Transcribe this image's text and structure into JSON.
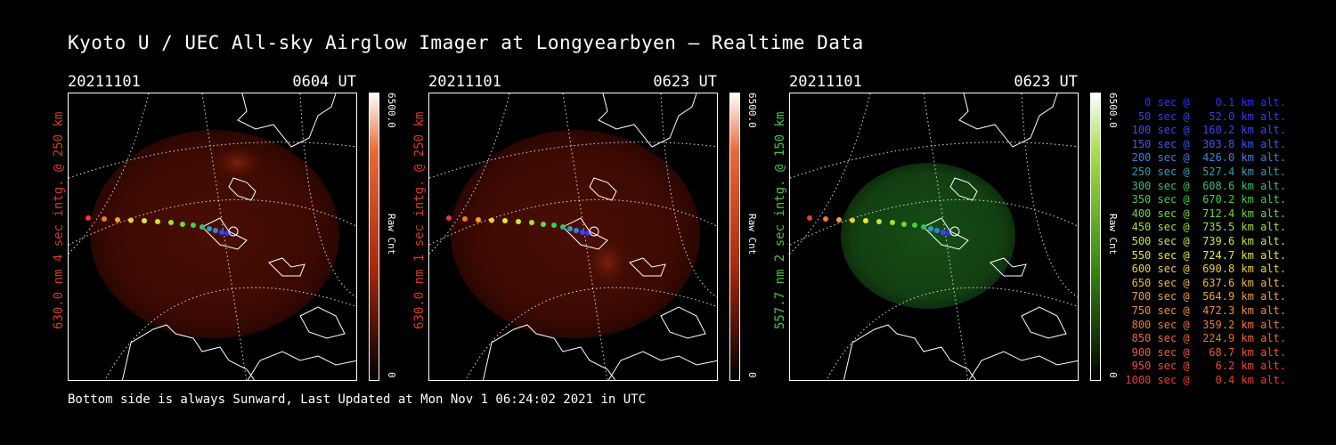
{
  "title": "Kyoto U / UEC All-sky Airglow Imager at Longyearbyen — Realtime Data",
  "footer": "Bottom side is always Sunward, Last Updated at Mon Nov  1 06:24:02 2021 in UTC",
  "panels": [
    {
      "date": "20211101",
      "time": "0604 UT",
      "side_label": "630.0 nm 4 sec intg. @ 250 km",
      "color": "#d83a1a",
      "glow": "#5a1408",
      "cbar_top": "6500.0",
      "cbar_unit": "Raw Cnt",
      "cbar_bottom": "0"
    },
    {
      "date": "20211101",
      "time": "0623 UT",
      "side_label": "630.0 nm 1 sec intg. @ 250 km",
      "color": "#d83a1a",
      "glow": "#5a1408",
      "cbar_top": "6500.0",
      "cbar_unit": "Raw Cnt",
      "cbar_bottom": "0"
    },
    {
      "date": "20211101",
      "time": "0623 UT",
      "side_label": "557.7 nm 2 sec intg. @ 150 km",
      "color": "#3ec83e",
      "glow": "#164d16",
      "cbar_top": "6500.0",
      "cbar_unit": "Raw Cnt",
      "cbar_bottom": "0"
    }
  ],
  "legend": [
    {
      "text": "   0 sec @    0.1 km alt.",
      "color": "#3030ff"
    },
    {
      "text": "  50 sec @   52.0 km alt.",
      "color": "#3a3af0"
    },
    {
      "text": " 100 sec @  160.2 km alt.",
      "color": "#3a48f0"
    },
    {
      "text": " 150 sec @  303.8 km alt.",
      "color": "#3a58f0"
    },
    {
      "text": " 200 sec @  426.0 km alt.",
      "color": "#3a80e0"
    },
    {
      "text": " 250 sec @  527.4 km alt.",
      "color": "#2ea0b0"
    },
    {
      "text": " 300 sec @  608.6 km alt.",
      "color": "#30c070"
    },
    {
      "text": " 350 sec @  670.2 km alt.",
      "color": "#40d040"
    },
    {
      "text": " 400 sec @  712.4 km alt.",
      "color": "#70d830"
    },
    {
      "text": " 450 sec @  735.5 km alt.",
      "color": "#a0e030"
    },
    {
      "text": " 500 sec @  739.6 km alt.",
      "color": "#c8e830"
    },
    {
      "text": " 550 sec @  724.7 km alt.",
      "color": "#e8e830"
    },
    {
      "text": " 600 sec @  690.8 km alt.",
      "color": "#f0d030"
    },
    {
      "text": " 650 sec @  637.6 km alt.",
      "color": "#f0b830"
    },
    {
      "text": " 700 sec @  564.9 km alt.",
      "color": "#f0a030"
    },
    {
      "text": " 750 sec @  472.3 km alt.",
      "color": "#f08c30"
    },
    {
      "text": " 800 sec @  359.2 km alt.",
      "color": "#f07830"
    },
    {
      "text": " 850 sec @  224.9 km alt.",
      "color": "#f06830"
    },
    {
      "text": " 900 sec @   68.7 km alt.",
      "color": "#f05830"
    },
    {
      "text": " 950 sec @    6.2 km alt.",
      "color": "#f04830"
    },
    {
      "text": "1000 sec @    0.4 km alt.",
      "color": "#f03a30"
    }
  ]
}
